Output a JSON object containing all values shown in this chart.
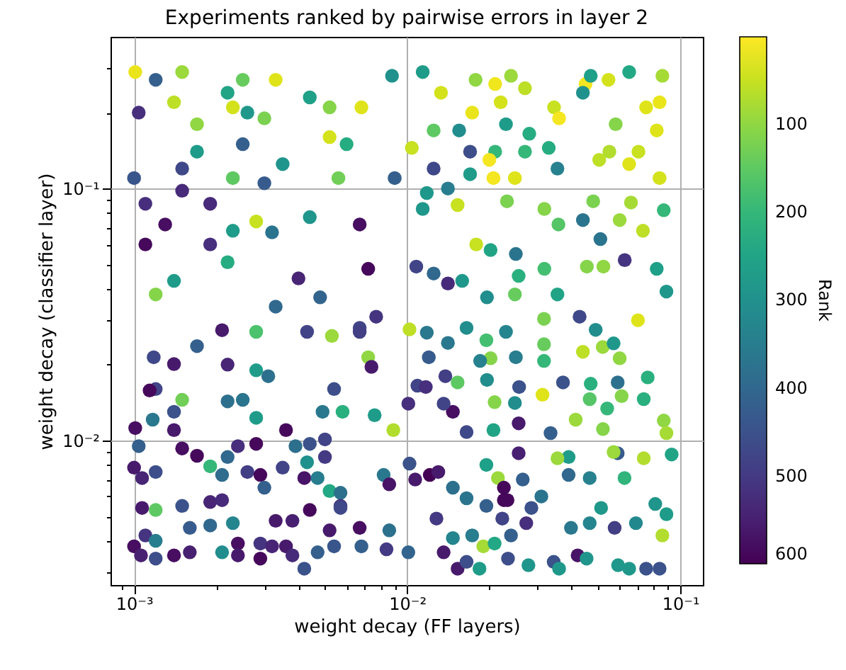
{
  "chart_data": {
    "type": "scatter",
    "title": "Experiments ranked by pairwise errors in layer 2",
    "xlabel": "weight decay (FF layers)",
    "ylabel": "weight decay (classifier layer)",
    "clabel": "Rank",
    "log": "xy",
    "grid": true,
    "marker": "circle",
    "legend": false,
    "xlim": [
      0.00082,
      0.121
    ],
    "ylim": [
      0.00267,
      0.4
    ],
    "xticks": [
      {
        "value": 0.0009,
        "label": null
      },
      {
        "value": 0.001,
        "label": "10⁻³"
      },
      {
        "value": 0.002,
        "label": null
      },
      {
        "value": 0.003,
        "label": null
      },
      {
        "value": 0.004,
        "label": null
      },
      {
        "value": 0.005,
        "label": null
      },
      {
        "value": 0.006,
        "label": null
      },
      {
        "value": 0.007,
        "label": null
      },
      {
        "value": 0.008,
        "label": null
      },
      {
        "value": 0.009,
        "label": null
      },
      {
        "value": 0.01,
        "label": "10⁻²"
      },
      {
        "value": 0.02,
        "label": null
      },
      {
        "value": 0.03,
        "label": null
      },
      {
        "value": 0.04,
        "label": null
      },
      {
        "value": 0.05,
        "label": null
      },
      {
        "value": 0.06,
        "label": null
      },
      {
        "value": 0.07,
        "label": null
      },
      {
        "value": 0.08,
        "label": null
      },
      {
        "value": 0.09,
        "label": null
      },
      {
        "value": 0.1,
        "label": "10⁻¹"
      }
    ],
    "yticks": [
      {
        "value": 0.003,
        "label": null
      },
      {
        "value": 0.004,
        "label": null
      },
      {
        "value": 0.005,
        "label": null
      },
      {
        "value": 0.006,
        "label": null
      },
      {
        "value": 0.007,
        "label": null
      },
      {
        "value": 0.008,
        "label": null
      },
      {
        "value": 0.009,
        "label": null
      },
      {
        "value": 0.01,
        "label": "10⁻²"
      },
      {
        "value": 0.02,
        "label": null
      },
      {
        "value": 0.03,
        "label": null
      },
      {
        "value": 0.04,
        "label": null
      },
      {
        "value": 0.05,
        "label": null
      },
      {
        "value": 0.06,
        "label": null
      },
      {
        "value": 0.07,
        "label": null
      },
      {
        "value": 0.08,
        "label": null
      },
      {
        "value": 0.09,
        "label": null
      },
      {
        "value": 0.1,
        "label": "10⁻¹"
      },
      {
        "value": 0.2,
        "label": null
      },
      {
        "value": 0.3,
        "label": null
      }
    ],
    "clim": [
      600,
      1
    ],
    "cticks": [
      100,
      200,
      300,
      400,
      500,
      600
    ],
    "x": [
      0.00101,
      0.0012,
      0.0015,
      0.0025,
      0.0033,
      0.0044,
      0.0068,
      0.0088,
      0.00104,
      0.0023,
      0.0022,
      0.0026,
      0.003,
      0.0052,
      0.0052,
      0.006,
      0.0025,
      0.0017,
      0.0015,
      0.0023,
      0.0035,
      0.001,
      0.003,
      0.0056,
      0.009,
      0.0017,
      0.0014,
      0.0015,
      0.0011,
      0.0013,
      0.0019,
      0.0028,
      0.0044,
      0.0067,
      0.0072,
      0.004,
      0.0019,
      0.0011,
      0.0032,
      0.0023,
      0.0014,
      0.0022,
      0.0048,
      0.0012,
      0.0033,
      0.0114,
      0.0133,
      0.0178,
      0.021,
      0.024,
      0.027,
      0.022,
      0.0173,
      0.0345,
      0.036,
      0.045,
      0.047,
      0.044,
      0.0546,
      0.065,
      0.086,
      0.075,
      0.084,
      0.058,
      0.082,
      0.023,
      0.028,
      0.0155,
      0.0125,
      0.017,
      0.0125,
      0.0104,
      0.021,
      0.027,
      0.033,
      0.0355,
      0.02,
      0.0207,
      0.0248,
      0.0505,
      0.055,
      0.0703,
      0.065,
      0.084,
      0.017,
      0.0141,
      0.0118,
      0.0153,
      0.0114,
      0.0232,
      0.0318,
      0.0358,
      0.044,
      0.048,
      0.066,
      0.087,
      0.06,
      0.073,
      0.051,
      0.0202,
      0.0179,
      0.025,
      0.0256,
      0.0141,
      0.0108,
      0.0125,
      0.0159,
      0.0318,
      0.0455,
      0.0626,
      0.082,
      0.0523,
      0.0355,
      0.089,
      0.0196,
      0.0248,
      0.00118,
      0.0014,
      0.0017,
      0.0022,
      0.0021,
      0.0028,
      0.0031,
      0.0028,
      0.0043,
      0.0053,
      0.0067,
      0.0077,
      0.0072,
      0.0074,
      0.0012,
      0.00114,
      0.0015,
      0.0022,
      0.0025,
      0.0028,
      0.0014,
      0.00117,
      0.00101,
      0.0014,
      0.0036,
      0.0054,
      0.0049,
      0.0058,
      0.0067,
      0.0076,
      0.0089,
      0.00104,
      0.0015,
      0.0017,
      0.0024,
      0.0028,
      0.0022,
      0.0019,
      0.001,
      0.0012,
      0.00107,
      0.0021,
      0.0026,
      0.0029,
      0.003,
      0.0035,
      0.0042,
      0.0047,
      0.0039,
      0.0044,
      0.005,
      0.0043,
      0.005,
      0.0052,
      0.0057,
      0.0057,
      0.0082,
      0.0086,
      0.0012,
      0.00107,
      0.0015,
      0.0019,
      0.0021,
      0.0016,
      0.0019,
      0.0023,
      0.0033,
      0.0038,
      0.0044,
      0.0057,
      0.0067,
      0.0052,
      0.0011,
      0.0012,
      0.001,
      0.00106,
      0.0012,
      0.0014,
      0.0016,
      0.0021,
      0.0024,
      0.0024,
      0.0029,
      0.0029,
      0.0032,
      0.0036,
      0.0038,
      0.0047,
      0.0042,
      0.0054,
      0.0068,
      0.0084,
      0.0086,
      0.0102,
      0.0118,
      0.0141,
      0.012,
      0.0165,
      0.0195,
      0.023,
      0.0202,
      0.0185,
      0.025,
      0.0317,
      0.0317,
      0.0317,
      0.0428,
      0.049,
      0.052,
      0.057,
      0.06,
      0.07,
      0.044,
      0.0138,
      0.0109,
      0.0117,
      0.0153,
      0.0196,
      0.0257,
      0.0313,
      0.0372,
      0.047,
      0.059,
      0.0735,
      0.076,
      0.061,
      0.0466,
      0.054,
      0.0147,
      0.0136,
      0.0209,
      0.0248,
      0.0101,
      0.0256,
      0.0207,
      0.0414,
      0.0521,
      0.087,
      0.089,
      0.0165,
      0.0335,
      0.093,
      0.0735,
      0.059,
      0.057,
      0.039,
      0.0355,
      0.0256,
      0.0195,
      0.0215,
      0.0265,
      0.039,
      0.0466,
      0.0625,
      0.0121,
      0.013,
      0.0107,
      0.0147,
      0.0226,
      0.0226,
      0.0233,
      0.0195,
      0.0165,
      0.031,
      0.0285,
      0.0223,
      0.0273,
      0.0398,
      0.0466,
      0.0575,
      0.0513,
      0.0688,
      0.081,
      0.089,
      0.086,
      0.0128,
      0.0147,
      0.0173,
      0.019,
      0.0209,
      0.024,
      0.0136,
      0.0153,
      0.0165,
      0.0184,
      0.0234,
      0.0278,
      0.0344,
      0.036,
      0.0421,
      0.0454,
      0.0592,
      0.065,
      0.075,
      0.084,
      0.0101,
      0.0102
    ],
    "values": [
      0.29,
      0.27,
      0.29,
      0.27,
      0.27,
      0.23,
      0.21,
      0.28,
      0.2,
      0.21,
      0.24,
      0.2,
      0.19,
      0.21,
      0.16,
      0.15,
      0.15,
      0.14,
      0.12,
      0.11,
      0.125,
      0.11,
      0.105,
      0.11,
      0.11,
      0.18,
      0.22,
      0.098,
      0.087,
      0.072,
      0.087,
      0.074,
      0.077,
      0.072,
      0.048,
      0.044,
      0.06,
      0.06,
      0.067,
      0.068,
      0.043,
      0.051,
      0.037,
      0.038,
      0.034,
      0.29,
      0.24,
      0.27,
      0.26,
      0.28,
      0.25,
      0.22,
      0.2,
      0.21,
      0.19,
      0.26,
      0.28,
      0.24,
      0.27,
      0.29,
      0.28,
      0.21,
      0.22,
      0.18,
      0.17,
      0.18,
      0.165,
      0.17,
      0.17,
      0.14,
      0.12,
      0.145,
      0.14,
      0.14,
      0.145,
      0.12,
      0.13,
      0.11,
      0.11,
      0.13,
      0.14,
      0.14,
      0.125,
      0.11,
      0.114,
      0.1,
      0.096,
      0.086,
      0.083,
      0.089,
      0.083,
      0.072,
      0.075,
      0.089,
      0.088,
      0.082,
      0.075,
      0.068,
      0.063,
      0.057,
      0.06,
      0.055,
      0.045,
      0.042,
      0.049,
      0.046,
      0.043,
      0.048,
      0.049,
      0.052,
      0.048,
      0.049,
      0.038,
      0.039,
      0.037,
      0.038,
      0.0214,
      0.0201,
      0.0237,
      0.02,
      0.0274,
      0.019,
      0.018,
      0.027,
      0.027,
      0.026,
      0.028,
      0.031,
      0.0214,
      0.0196,
      0.016,
      0.0158,
      0.0145,
      0.0143,
      0.0145,
      0.0123,
      0.013,
      0.0121,
      0.0112,
      0.011,
      0.011,
      0.016,
      0.013,
      0.013,
      0.027,
      0.0126,
      0.011,
      0.0095,
      0.0093,
      0.0087,
      0.0095,
      0.0097,
      0.0086,
      0.0079,
      0.0078,
      0.0075,
      0.0071,
      0.0073,
      0.0075,
      0.0073,
      0.0065,
      0.0078,
      0.0071,
      0.0071,
      0.0095,
      0.0097,
      0.0101,
      0.0082,
      0.0086,
      0.0063,
      0.0062,
      0.0055,
      0.0073,
      0.0067,
      0.0053,
      0.0054,
      0.0055,
      0.0057,
      0.0058,
      0.0045,
      0.0046,
      0.0047,
      0.0048,
      0.0048,
      0.0053,
      0.0054,
      0.0045,
      0.0044,
      0.0042,
      0.004,
      0.0038,
      0.0035,
      0.0034,
      0.0035,
      0.0036,
      0.0036,
      0.0039,
      0.0035,
      0.0034,
      0.0039,
      0.0038,
      0.0038,
      0.0035,
      0.0036,
      0.0031,
      0.0038,
      0.0038,
      0.0037,
      0.0044,
      0.0276,
      0.0268,
      0.0244,
      0.0214,
      0.028,
      0.025,
      0.027,
      0.0212,
      0.0207,
      0.0214,
      0.0207,
      0.0241,
      0.0304,
      0.031,
      0.0275,
      0.0235,
      0.0243,
      0.0212,
      0.03,
      0.0225,
      0.018,
      0.0165,
      0.0163,
      0.017,
      0.0174,
      0.0163,
      0.0152,
      0.017,
      0.0168,
      0.017,
      0.0146,
      0.0178,
      0.015,
      0.0146,
      0.0134,
      0.013,
      0.014,
      0.0142,
      0.0141,
      0.014,
      0.0117,
      0.011,
      0.0121,
      0.0111,
      0.012,
      0.0107,
      0.0108,
      0.0107,
      0.0088,
      0.0085,
      0.0089,
      0.009,
      0.0086,
      0.0085,
      0.0089,
      0.008,
      0.0071,
      0.007,
      0.0073,
      0.0071,
      0.0071,
      0.0073,
      0.0075,
      0.007,
      0.0065,
      0.0065,
      0.0058,
      0.0058,
      0.0055,
      0.0059,
      0.006,
      0.0054,
      0.0049,
      0.0047,
      0.0045,
      0.0047,
      0.0045,
      0.0054,
      0.0047,
      0.0056,
      0.0051,
      0.0042,
      0.0049,
      0.0041,
      0.0042,
      0.0038,
      0.0039,
      0.0042,
      0.0036,
      0.0031,
      0.0033,
      0.0031,
      0.0034,
      0.0032,
      0.0033,
      0.0031,
      0.0035,
      0.0034,
      0.0032,
      0.0031,
      0.0031,
      0.0031,
      0.0036,
      0.0081
    ],
    "cvalues": [
      20,
      420,
      90,
      140,
      30,
      260,
      30,
      300,
      520,
      40,
      250,
      280,
      120,
      110,
      40,
      230,
      420,
      270,
      470,
      150,
      290,
      440,
      430,
      130,
      420,
      100,
      60,
      530,
      520,
      580,
      530,
      50,
      290,
      580,
      590,
      540,
      520,
      590,
      370,
      270,
      270,
      230,
      410,
      110,
      400,
      270,
      40,
      100,
      15,
      90,
      60,
      40,
      20,
      50,
      10,
      10,
      260,
      300,
      40,
      240,
      80,
      30,
      20,
      110,
      30,
      270,
      230,
      310,
      150,
      460,
      470,
      50,
      200,
      200,
      230,
      340,
      10,
      10,
      30,
      60,
      70,
      50,
      30,
      40,
      270,
      350,
      280,
      50,
      280,
      120,
      110,
      160,
      370,
      120,
      80,
      200,
      90,
      60,
      370,
      250,
      50,
      370,
      220,
      530,
      480,
      400,
      280,
      180,
      110,
      510,
      260,
      100,
      250,
      280,
      310,
      140,
      470,
      560,
      420,
      540,
      560,
      270,
      380,
      170,
      480,
      90,
      480,
      510,
      100,
      560,
      480,
      590,
      130,
      380,
      370,
      270,
      450,
      360,
      580,
      560,
      590,
      460,
      360,
      220,
      490,
      270,
      70,
      420,
      580,
      590,
      520,
      590,
      400,
      200,
      560,
      460,
      540,
      390,
      490,
      590,
      420,
      480,
      570,
      350,
      380,
      450,
      480,
      300,
      500,
      240,
      380,
      500,
      360,
      570,
      150,
      560,
      450,
      540,
      530,
      430,
      400,
      330,
      560,
      550,
      590,
      470,
      580,
      560,
      510,
      350,
      580,
      550,
      460,
      580,
      550,
      310,
      580,
      560,
      590,
      510,
      540,
      560,
      530,
      420,
      450,
      440,
      420,
      500,
      380,
      60,
      360,
      360,
      430,
      310,
      180,
      330,
      110,
      340,
      350,
      200,
      140,
      120,
      470,
      310,
      90,
      280,
      100,
      30,
      60,
      490,
      480,
      520,
      150,
      310,
      450,
      30,
      450,
      220,
      380,
      220,
      220,
      110,
      160,
      200,
      580,
      480,
      110,
      310,
      520,
      560,
      250,
      90,
      110,
      100,
      80,
      470,
      420,
      250,
      70,
      430,
      90,
      270,
      90,
      550,
      260,
      90,
      420,
      400,
      340,
      210,
      600,
      560,
      560,
      380,
      590,
      590,
      590,
      420,
      370,
      370,
      450,
      480,
      520,
      360,
      330,
      490,
      280,
      320,
      290,
      270,
      70,
      500,
      330,
      350,
      80,
      240,
      420,
      560,
      560,
      460,
      270,
      460,
      290,
      450,
      280,
      570,
      290,
      280,
      280,
      450,
      450,
      410,
      450
    ]
  }
}
